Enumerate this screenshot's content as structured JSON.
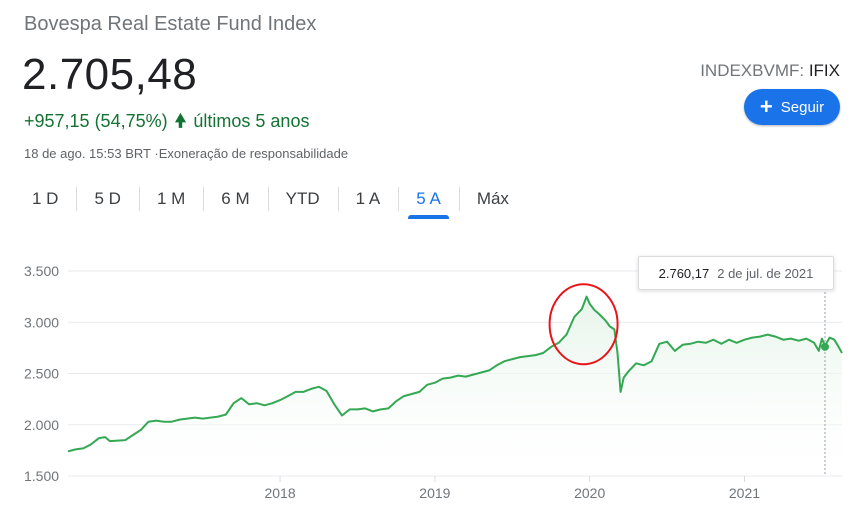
{
  "header": {
    "title": "Bovespa Real Estate Fund Index",
    "price": "2.705,48",
    "change": "+957,15 (54,75%)",
    "period": "últimos 5 anos",
    "timestamp": "18 de ago. 15:53 BRT",
    "disclaimer": "·Exoneração de responsabilidade",
    "exchange": "INDEXBVMF:",
    "symbol": "IFIX",
    "follow_label": "Seguir"
  },
  "tabs": [
    {
      "label": "1 D"
    },
    {
      "label": "5 D"
    },
    {
      "label": "1 M"
    },
    {
      "label": "6 M"
    },
    {
      "label": "YTD"
    },
    {
      "label": "1 A"
    },
    {
      "label": "5 A",
      "active": true
    },
    {
      "label": "Máx"
    }
  ],
  "tooltip": {
    "value": "2.760,17",
    "date": "2 de jul. de 2021"
  },
  "colors": {
    "line": "#34a853",
    "fill": "#e6f4ea",
    "accent": "#1a73e8",
    "positive": "#137333",
    "annotation": "#e8141a"
  },
  "chart_data": {
    "type": "line",
    "y_ticks": [
      "3.500",
      "3.000",
      "2.500",
      "2.000",
      "1.500"
    ],
    "y_tick_values": [
      3500,
      3000,
      2500,
      2000,
      1500
    ],
    "x_ticks": [
      "2018",
      "2019",
      "2020",
      "2021"
    ],
    "x_tick_values": [
      2018.0,
      2019.0,
      2020.0,
      2021.0
    ],
    "ylim": [
      1500,
      3500
    ],
    "xlim": [
      2016.63,
      2021.63
    ],
    "grid": true,
    "series": [
      {
        "x": [
          2016.63,
          2016.68,
          2016.73,
          2016.78,
          2016.83,
          2016.87,
          2016.9,
          2016.95,
          2017.0,
          2017.05,
          2017.1,
          2017.15,
          2017.2,
          2017.25,
          2017.3,
          2017.35,
          2017.4,
          2017.45,
          2017.5,
          2017.55,
          2017.6,
          2017.65,
          2017.7,
          2017.75,
          2017.8,
          2017.85,
          2017.9,
          2017.95,
          2018.0,
          2018.05,
          2018.1,
          2018.15,
          2018.2,
          2018.25,
          2018.3,
          2018.35,
          2018.4,
          2018.45,
          2018.5,
          2018.55,
          2018.6,
          2018.65,
          2018.7,
          2018.75,
          2018.8,
          2018.85,
          2018.9,
          2018.95,
          2019.0,
          2019.05,
          2019.1,
          2019.15,
          2019.2,
          2019.25,
          2019.3,
          2019.35,
          2019.4,
          2019.45,
          2019.5,
          2019.55,
          2019.6,
          2019.65,
          2019.7,
          2019.75,
          2019.8,
          2019.85,
          2019.9,
          2019.95,
          2019.98,
          2020.0,
          2020.03,
          2020.06,
          2020.1,
          2020.13,
          2020.16,
          2020.18,
          2020.2,
          2020.22,
          2020.25,
          2020.3,
          2020.35,
          2020.4,
          2020.45,
          2020.5,
          2020.55,
          2020.6,
          2020.65,
          2020.7,
          2020.75,
          2020.8,
          2020.85,
          2020.9,
          2020.95,
          2021.0,
          2021.05,
          2021.1,
          2021.15,
          2021.2,
          2021.25,
          2021.3,
          2021.35,
          2021.4,
          2021.45,
          2021.48,
          2021.5,
          2021.52,
          2021.55,
          2021.58,
          2021.6,
          2021.63
        ],
        "y": [
          1740,
          1760,
          1770,
          1810,
          1870,
          1880,
          1840,
          1845,
          1850,
          1900,
          1950,
          2030,
          2040,
          2030,
          2030,
          2050,
          2060,
          2070,
          2060,
          2070,
          2080,
          2100,
          2210,
          2260,
          2200,
          2210,
          2190,
          2210,
          2240,
          2280,
          2320,
          2320,
          2350,
          2370,
          2330,
          2200,
          2090,
          2150,
          2150,
          2160,
          2130,
          2150,
          2160,
          2230,
          2280,
          2300,
          2320,
          2390,
          2410,
          2450,
          2460,
          2480,
          2470,
          2490,
          2510,
          2530,
          2580,
          2620,
          2640,
          2660,
          2670,
          2680,
          2700,
          2760,
          2800,
          2880,
          3050,
          3130,
          3250,
          3180,
          3120,
          3080,
          3020,
          2960,
          2930,
          2700,
          2320,
          2460,
          2520,
          2600,
          2580,
          2620,
          2790,
          2810,
          2720,
          2780,
          2790,
          2810,
          2800,
          2830,
          2790,
          2830,
          2800,
          2830,
          2850,
          2860,
          2880,
          2860,
          2830,
          2840,
          2820,
          2840,
          2800,
          2720,
          2840,
          2770,
          2850,
          2830,
          2780,
          2700
        ]
      }
    ],
    "annotation": {
      "type": "circle",
      "x": 2019.98,
      "y": 3000
    }
  }
}
